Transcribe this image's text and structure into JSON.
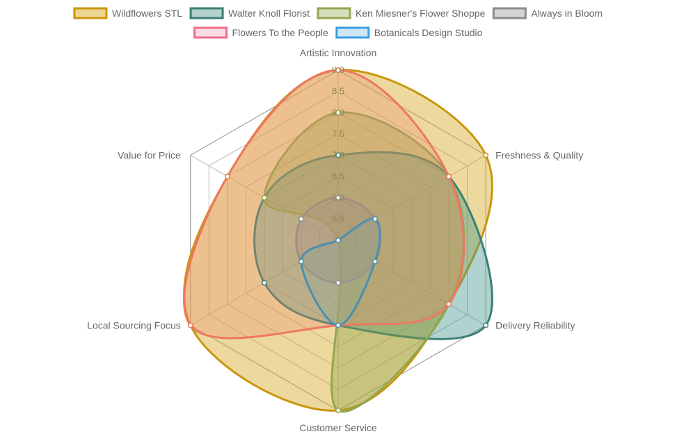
{
  "chart_data": {
    "type": "radar",
    "axes": [
      "Artistic Innovation",
      "Freshness & Quality",
      "Delivery Reliability",
      "Customer Service",
      "Local Sourcing Focus",
      "Value for Price"
    ],
    "r_range": [
      5.0,
      9.0
    ],
    "ticks": [
      "5.5",
      "6.0",
      "6.5",
      "7.0",
      "7.5",
      "8.0",
      "8.5",
      "9.0"
    ],
    "tick_values": [
      5.5,
      6.0,
      6.5,
      7.0,
      7.5,
      8.0,
      8.5,
      9.0
    ],
    "series": [
      {
        "name": "Wildflowers STL",
        "values": [
          9.0,
          9.0,
          8.0,
          9.0,
          9.0,
          8.0
        ],
        "border": "#c9960c",
        "fill": "rgba(214,170,40,0.45)"
      },
      {
        "name": "Walter Knoll Florist",
        "values": [
          7.0,
          8.0,
          9.0,
          7.0,
          7.0,
          7.0
        ],
        "border": "#3a8073",
        "fill": "rgba(70,150,140,0.42)"
      },
      {
        "name": "Ken Miesner's Flower Shoppe",
        "values": [
          8.0,
          8.0,
          8.0,
          9.0,
          5.0,
          7.0
        ],
        "border": "#93a650",
        "fill": "rgba(140,160,70,0.38)"
      },
      {
        "name": "Always in Bloom",
        "values": [
          6.0,
          6.0,
          6.0,
          6.0,
          6.0,
          6.0
        ],
        "border": "#8c8c8c",
        "fill": "rgba(140,140,140,0.35)"
      },
      {
        "name": "Flowers To the People",
        "values": [
          9.0,
          8.0,
          8.0,
          7.0,
          9.0,
          8.0
        ],
        "border": "#ee7762",
        "fill": "rgba(238,140,110,0.30)"
      },
      {
        "name": "Botanicals Design Studio",
        "values": [
          5.0,
          6.0,
          6.0,
          7.0,
          6.0,
          5.0
        ],
        "border": "#4a8fb0",
        "fill": "rgba(120,170,160,0.25)"
      }
    ]
  },
  "legend": {
    "items": [
      {
        "label": "Wildflowers STL",
        "box_fill": "#ecd68f",
        "box_border": "#c9960c"
      },
      {
        "label": "Walter Knoll Florist",
        "box_fill": "#b3d1cc",
        "box_border": "#3a8073"
      },
      {
        "label": "Ken Miesner's Flower Shoppe",
        "box_fill": "#d4e0bd",
        "box_border": "#93a650"
      },
      {
        "label": "Always in Bloom",
        "box_fill": "#d4d4d4",
        "box_border": "#8c8c8c"
      },
      {
        "label": "Flowers To the People",
        "box_fill": "#fcdde4",
        "box_border": "#ef6d88"
      },
      {
        "label": "Botanicals Design Studio",
        "box_fill": "#cfe6f5",
        "box_border": "#3aa0e0"
      }
    ]
  }
}
